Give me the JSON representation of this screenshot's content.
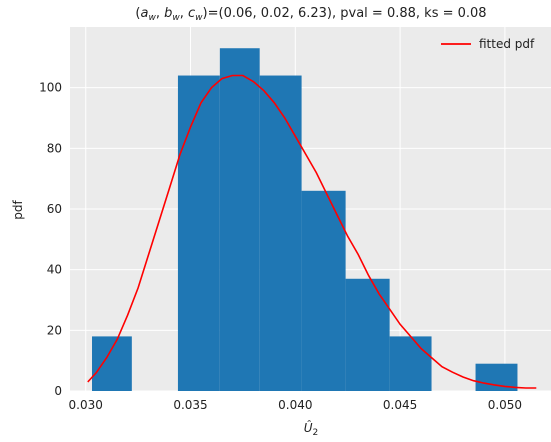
{
  "chart_data": {
    "type": "bar",
    "title_parts": {
      "open": "(",
      "a": "a",
      "b": "b",
      "c": "c",
      "sub": "w",
      "sep": ", ",
      "rest": ")=(0.06, 0.02, 6.23), pval = 0.88, ks = 0.08"
    },
    "xlabel": {
      "symbol": "Û",
      "sub": "2"
    },
    "ylabel": "pdf",
    "xlim": [
      0.02925,
      0.0522
    ],
    "ylim": [
      0,
      120
    ],
    "xticks": [
      {
        "value": 0.03,
        "label": "0.030"
      },
      {
        "value": 0.035,
        "label": "0.035"
      },
      {
        "value": 0.04,
        "label": "0.040"
      },
      {
        "value": 0.045,
        "label": "0.045"
      },
      {
        "value": 0.05,
        "label": "0.050"
      }
    ],
    "yticks": [
      {
        "value": 0,
        "label": "0"
      },
      {
        "value": 20,
        "label": "20"
      },
      {
        "value": 40,
        "label": "40"
      },
      {
        "value": 60,
        "label": "60"
      },
      {
        "value": 80,
        "label": "80"
      },
      {
        "value": 100,
        "label": "100"
      }
    ],
    "grid": true,
    "bins": [
      {
        "x0": 0.0303,
        "x1": 0.0322,
        "value": 18
      },
      {
        "x0": 0.0322,
        "x1": 0.0344,
        "value": 0
      },
      {
        "x0": 0.0344,
        "x1": 0.0364,
        "value": 104
      },
      {
        "x0": 0.0364,
        "x1": 0.0383,
        "value": 113
      },
      {
        "x0": 0.0383,
        "x1": 0.0403,
        "value": 104
      },
      {
        "x0": 0.0403,
        "x1": 0.0424,
        "value": 66
      },
      {
        "x0": 0.0424,
        "x1": 0.0445,
        "value": 37
      },
      {
        "x0": 0.0445,
        "x1": 0.0465,
        "value": 18
      },
      {
        "x0": 0.0465,
        "x1": 0.0486,
        "value": 0
      },
      {
        "x0": 0.0486,
        "x1": 0.0506,
        "value": 9
      }
    ],
    "bar_color": "#1f77b4",
    "fitted_curve": {
      "name": "fitted pdf",
      "color": "#ff0000",
      "x": [
        0.0301,
        0.0305,
        0.031,
        0.0315,
        0.032,
        0.0325,
        0.033,
        0.0335,
        0.034,
        0.0345,
        0.035,
        0.0355,
        0.036,
        0.0365,
        0.037,
        0.0375,
        0.038,
        0.0385,
        0.039,
        0.0395,
        0.04,
        0.0405,
        0.041,
        0.0415,
        0.042,
        0.0425,
        0.043,
        0.0435,
        0.044,
        0.0445,
        0.045,
        0.0455,
        0.046,
        0.0465,
        0.047,
        0.0475,
        0.048,
        0.0485,
        0.049,
        0.0495,
        0.05,
        0.0505,
        0.051,
        0.0515
      ],
      "y": [
        3,
        6,
        11,
        17,
        25,
        34,
        45,
        56,
        67,
        78,
        87,
        95,
        100,
        103,
        104,
        104,
        102,
        99,
        95,
        90,
        84,
        78,
        72,
        65,
        58,
        51,
        45,
        38,
        32,
        27,
        22,
        18,
        14,
        11,
        8,
        6.2,
        4.6,
        3.4,
        2.6,
        2.0,
        1.5,
        1.2,
        1.0,
        1.0
      ]
    },
    "legend": {
      "label": "fitted pdf",
      "position": "upper right"
    }
  }
}
